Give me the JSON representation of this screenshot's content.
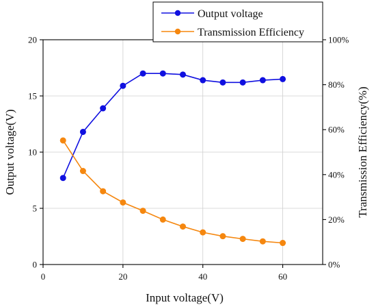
{
  "chart_data": {
    "type": "line",
    "title": "",
    "xlabel": "Input voltage(V)",
    "ylabel_left": "Output voltage(V)",
    "ylabel_right": "Transmission Efficiency(%)",
    "x": [
      5,
      10,
      15,
      20,
      25,
      30,
      35,
      40,
      45,
      50,
      55,
      60
    ],
    "xlim": [
      0,
      70
    ],
    "ylim_left": [
      0,
      20
    ],
    "ylim_right": [
      0,
      100
    ],
    "x_ticks": [
      0,
      20,
      40,
      60
    ],
    "x_tick_labels": [
      "0",
      "20",
      "40",
      "60"
    ],
    "y_left_ticks": [
      0,
      5,
      10,
      15,
      20
    ],
    "y_left_tick_labels": [
      "0",
      "5",
      "10",
      "15",
      "20"
    ],
    "y_right_ticks": [
      0,
      20,
      40,
      60,
      80,
      100
    ],
    "y_right_tick_labels": [
      "0%",
      "20%",
      "40%",
      "60%",
      "80%",
      "100%"
    ],
    "grid": true,
    "legend_placement": "top-right",
    "series": [
      {
        "name": "Output voltage",
        "axis": "left",
        "color": "#1010e0",
        "marker": "circle",
        "values": [
          7.7,
          11.8,
          13.9,
          15.9,
          17.0,
          17.0,
          16.9,
          16.4,
          16.2,
          16.2,
          16.4,
          16.5
        ]
      },
      {
        "name": "Transmission Efficiency",
        "axis": "right",
        "color": "#f5870f",
        "marker": "circle",
        "values": [
          55.2,
          41.6,
          32.6,
          27.6,
          23.9,
          20.0,
          16.9,
          14.3,
          12.6,
          11.4,
          10.3,
          9.6
        ]
      }
    ]
  }
}
